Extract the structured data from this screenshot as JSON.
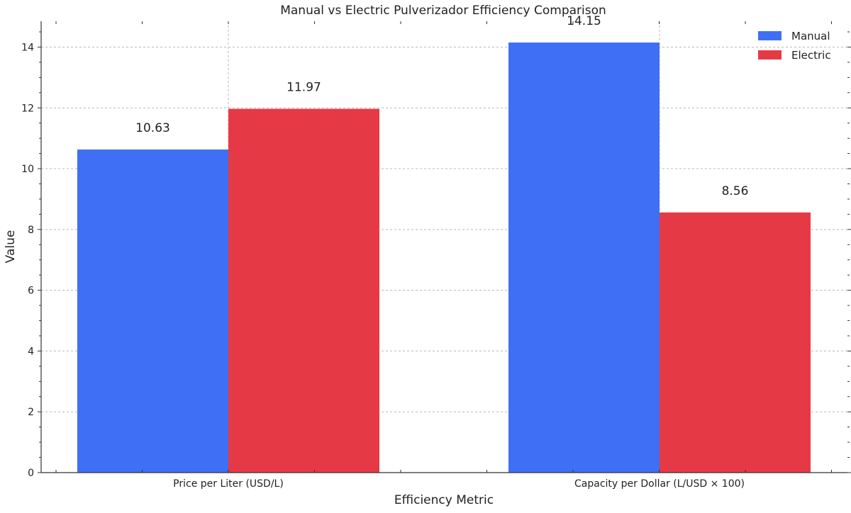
{
  "chart_data": {
    "type": "bar",
    "title": "Manual vs Electric Pulverizador Efficiency Comparison",
    "xlabel": "Efficiency Metric",
    "ylabel": "Value",
    "categories": [
      "Price per Liter (USD/L)",
      "Capacity per Dollar (L/USD × 100)"
    ],
    "series": [
      {
        "name": "Manual",
        "color": "#3f6ff5",
        "values": [
          10.63,
          14.15
        ],
        "labels": [
          "10.63",
          "14.15"
        ]
      },
      {
        "name": "Electric",
        "color": "#e63946",
        "values": [
          11.97,
          8.56
        ],
        "labels": [
          "11.97",
          "8.56"
        ]
      }
    ],
    "ylim": [
      0,
      14.85
    ],
    "yticks": [
      0,
      2,
      4,
      6,
      8,
      10,
      12,
      14
    ],
    "ytick_labels": [
      "0",
      "2",
      "4",
      "6",
      "8",
      "10",
      "12",
      "14"
    ],
    "grid": true,
    "legend_position": "top-right"
  }
}
